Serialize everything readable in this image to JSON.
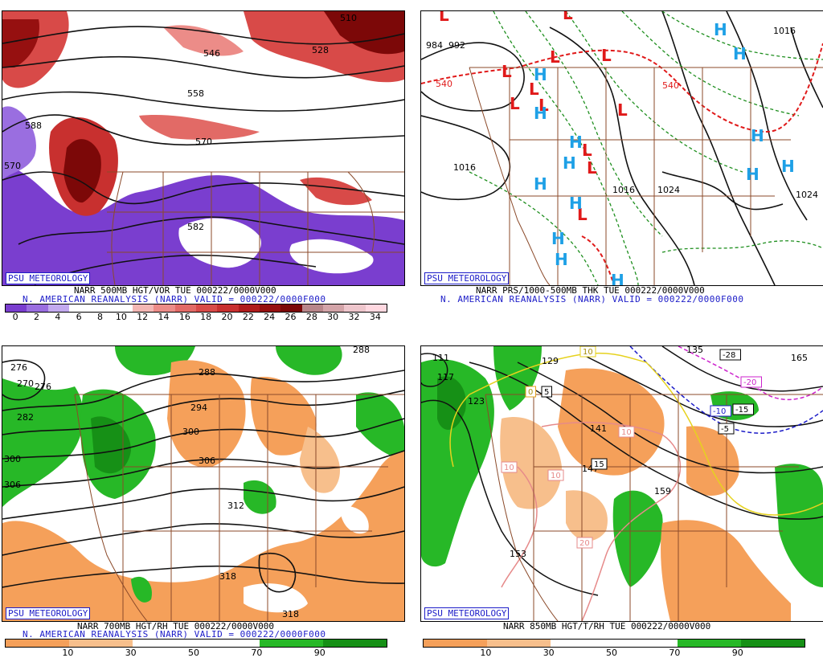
{
  "panels": [
    {
      "id": "p1",
      "badge": "PSU METEOROLOGY",
      "line1": "NARR 500MB HGT/VOR TUE 000222/0000V000",
      "line2": "N. AMERICAN REANALYSIS (NARR) VALID = 000222/0000F000",
      "contour_labels": [
        "510",
        "528",
        "546",
        "558",
        "570",
        "582",
        "588",
        "570"
      ],
      "colorbar": {
        "ticks": [
          "0",
          "2",
          "4",
          "6",
          "8",
          "10",
          "12",
          "14",
          "16",
          "18",
          "20",
          "22",
          "24",
          "26",
          "28",
          "30",
          "32",
          "34"
        ],
        "colors": [
          "#7a3ecf",
          "#9a6ee0",
          "#c3aaef",
          "#ffffff",
          "#ffffff",
          "#ffffff",
          "#f3b7b4",
          "#ec8c88",
          "#e26a66",
          "#d84a48",
          "#c8302f",
          "#b01c1c",
          "#961010",
          "#7c0808",
          "#b8868a",
          "#d3a4a8",
          "#eec6cc",
          "#ffd8e0"
        ]
      }
    },
    {
      "id": "p2",
      "badge": "PSU METEOROLOGY",
      "line1": "NARR PRS/1000-500MB THK TUE 000222/0000V000",
      "line2": "N. AMERICAN REANALYSIS (NARR) VALID = 000222/0000F000",
      "pressure_labels": [
        "984",
        "992",
        "1016",
        "1016",
        "1024",
        "1016",
        "1024",
        "540",
        "540"
      ],
      "symbols": [
        "L",
        "L",
        "L",
        "L",
        "L",
        "L",
        "L",
        "L",
        "L",
        "L",
        "L",
        "L",
        "H",
        "H",
        "H",
        "H",
        "H",
        "H",
        "H",
        "H",
        "H",
        "H",
        "H",
        "H",
        "H",
        "H"
      ]
    },
    {
      "id": "p3",
      "badge": "PSU METEOROLOGY",
      "line1": "NARR 700MB HGT/RH TUE 000222/0000V000",
      "line2": "N. AMERICAN REANALYSIS (NARR) VALID = 000222/0000F000",
      "contour_labels": [
        "276",
        "270",
        "276",
        "282",
        "288",
        "294",
        "300",
        "306",
        "306",
        "312",
        "318",
        "318",
        "288",
        "300"
      ],
      "colorbar": {
        "ticks": [
          "10",
          "30",
          "50",
          "70",
          "90"
        ],
        "colors": [
          "#f5a05a",
          "#f7bf8c",
          "#ffffff",
          "#ffffff",
          "#27b827",
          "#169016"
        ]
      }
    },
    {
      "id": "p4",
      "badge": "PSU METEOROLOGY",
      "line1": "NARR 850MB HGT/T/RH TUE 000222/0000V000",
      "line2": "",
      "contour_labels": [
        "111",
        "117",
        "123",
        "129",
        "135",
        "141",
        "147",
        "153",
        "159",
        "165"
      ],
      "temp_boxes": [
        "-28",
        "-20",
        "-15",
        "-10",
        "-5",
        "0",
        "5",
        "10",
        "10",
        "10",
        "15",
        "20",
        "10"
      ],
      "colorbar": {
        "ticks": [
          "10",
          "30",
          "50",
          "70",
          "90"
        ],
        "colors": [
          "#f5a05a",
          "#f7bf8c",
          "#ffffff",
          "#ffffff",
          "#27b827",
          "#169016"
        ]
      }
    }
  ]
}
